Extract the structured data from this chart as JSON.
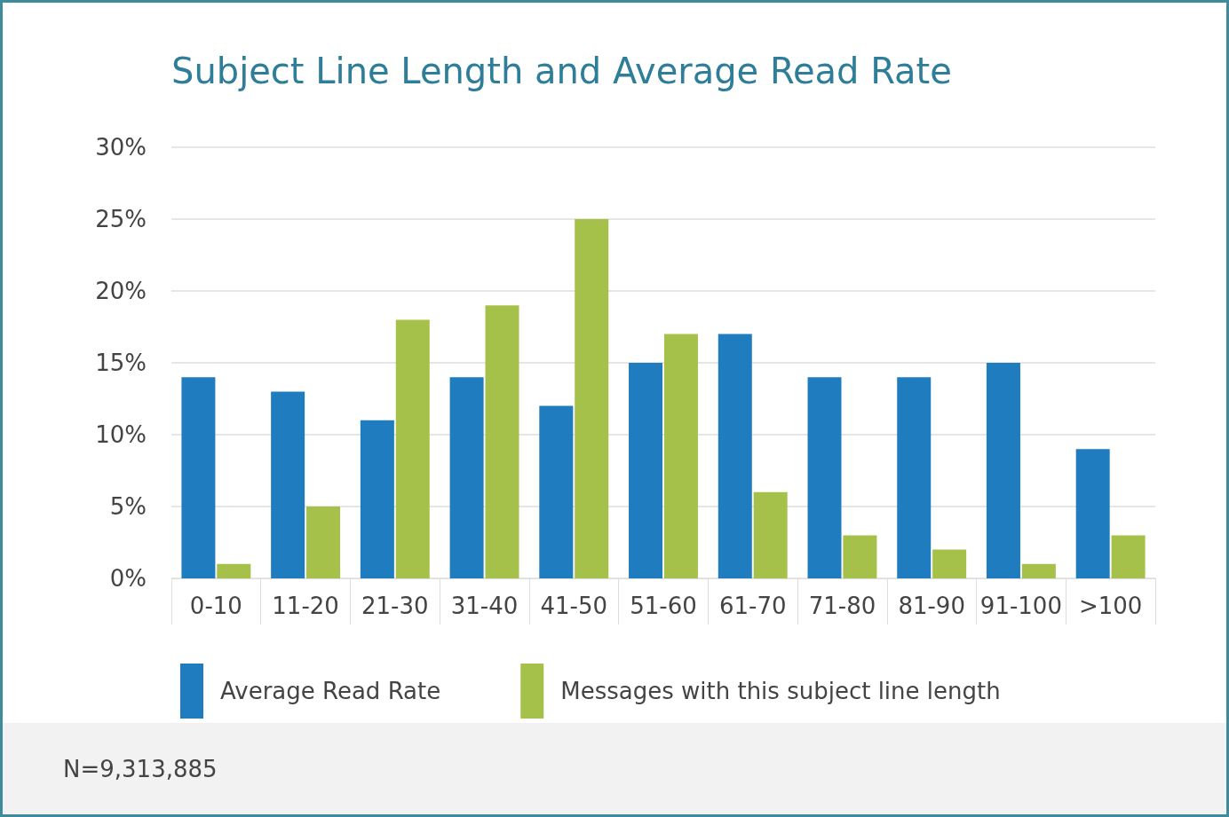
{
  "chart_data": {
    "type": "bar",
    "title": "Subject Line Length and Average Read Rate",
    "categories": [
      "0-10",
      "11-20",
      "21-30",
      "31-40",
      "41-50",
      "51-60",
      "61-70",
      "71-80",
      "81-90",
      "91-100",
      ">100"
    ],
    "series": [
      {
        "name": "Average Read Rate",
        "color": "#1f7dbf",
        "values": [
          14,
          13,
          11,
          14,
          12,
          15,
          17,
          14,
          14,
          15,
          9
        ]
      },
      {
        "name": "Messages with this subject line length",
        "color": "#a6c14a",
        "values": [
          1,
          5,
          18,
          19,
          25,
          17,
          6,
          3,
          2,
          1,
          3
        ]
      }
    ],
    "ylim": [
      0,
      30
    ],
    "yticks": [
      {
        "value": 0,
        "label": "0%"
      },
      {
        "value": 5,
        "label": "5%"
      },
      {
        "value": 10,
        "label": "10%"
      },
      {
        "value": 15,
        "label": "15%"
      },
      {
        "value": 20,
        "label": "20%"
      },
      {
        "value": 25,
        "label": "25%"
      },
      {
        "value": 30,
        "label": "30%"
      }
    ],
    "grid": "y",
    "legend": "bottom",
    "annotations": [
      "N=9,313,885"
    ]
  }
}
